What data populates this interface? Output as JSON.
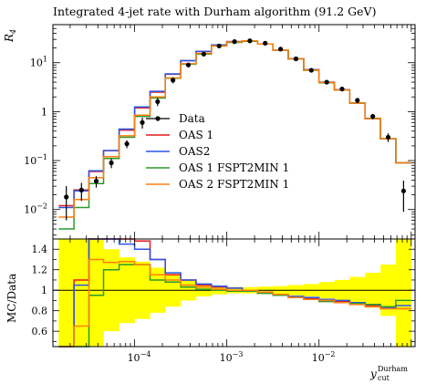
{
  "title": "Integrated 4-jet rate with Durham algorithm (91.2 GeV)",
  "colors": {
    "data": "#000000",
    "oas1": "#e41a1c",
    "oas2": "#2a56e8",
    "oas1fspt": "#2a9a2a",
    "oas2fspt": "#ff7f0e",
    "band": "#ffff00"
  },
  "chart_data": [
    {
      "type": "line",
      "title": "Integrated 4-jet rate with Durham algorithm (91.2 GeV)",
      "ylabel": "R_4",
      "xlabel": "",
      "xscale": "log",
      "yscale": "log",
      "xlim": [
        1.3e-05,
        0.11
      ],
      "ylim": [
        0.0025,
        60
      ],
      "grid": false,
      "legend_position": "center-left",
      "x_ticks": [
        "10^-4",
        "10^-3",
        "10^-2"
      ],
      "y_ticks": [
        "10^-2",
        "10^-1",
        "1",
        "10^1"
      ],
      "bin_edges": [
        1.5e-05,
        2.2e-05,
        3.2e-05,
        4.6e-05,
        6.8e-05,
        0.0001,
        0.000147,
        0.000215,
        0.000316,
        0.000464,
        0.000681,
        0.001,
        0.00147,
        0.00215,
        0.00316,
        0.00464,
        0.00681,
        0.01,
        0.0147,
        0.0215,
        0.0316,
        0.0464,
        0.0681,
        0.1
      ],
      "data": {
        "name": "Data",
        "y": [
          0.018,
          0.025,
          0.038,
          0.09,
          0.22,
          0.6,
          1.6,
          4.4,
          9,
          15,
          22,
          27,
          28,
          25,
          19,
          12,
          7,
          4,
          2.9,
          1.7,
          0.8,
          0.3,
          0.024
        ],
        "err": [
          0.012,
          0.01,
          0.01,
          0.02,
          0.04,
          0.15,
          0.3,
          0.6,
          1,
          1.5,
          2,
          2,
          2,
          2,
          1.5,
          1,
          0.6,
          0.4,
          0.3,
          0.2,
          0.1,
          0.06,
          0.015
        ]
      },
      "series": [
        {
          "name": "OAS 1",
          "color": "#e41a1c",
          "values": [
            0.012,
            0.025,
            0.06,
            0.16,
            0.42,
            1.2,
            2.5,
            5.8,
            11,
            17,
            23,
            27,
            28,
            24,
            18,
            12,
            7.2,
            4.0,
            2.8,
            1.5,
            0.72,
            0.28,
            0.09
          ]
        },
        {
          "name": "OAS2",
          "color": "#2a56e8",
          "values": [
            0.011,
            0.024,
            0.062,
            0.16,
            0.44,
            1.25,
            2.6,
            5.9,
            11,
            17,
            23,
            27,
            28,
            24,
            18,
            12,
            7.2,
            4.0,
            2.8,
            1.5,
            0.72,
            0.28,
            0.09
          ]
        },
        {
          "name": "OAS 1 FSPT2MIN 1",
          "color": "#2a9a2a",
          "values": [
            0.004,
            0.011,
            0.034,
            0.11,
            0.3,
            0.8,
            1.9,
            4.8,
            9.3,
            15,
            22,
            26,
            27.5,
            24,
            18,
            12,
            7,
            3.9,
            2.75,
            1.5,
            0.73,
            0.28,
            0.09
          ]
        },
        {
          "name": "OAS 2 FSPT2MIN 1",
          "color": "#ff7f0e",
          "values": [
            0.007,
            0.016,
            0.045,
            0.12,
            0.32,
            0.85,
            2.0,
            4.9,
            9.5,
            15.5,
            22,
            26.5,
            28,
            24,
            18,
            12,
            7.1,
            3.95,
            2.78,
            1.5,
            0.72,
            0.28,
            0.09
          ]
        }
      ]
    },
    {
      "type": "line",
      "ylabel": "MC/Data",
      "xlabel": "y_cut^Durham",
      "xscale": "log",
      "xlim": [
        1.3e-05,
        0.11
      ],
      "ylim": [
        0.45,
        1.5
      ],
      "y_ticks": [
        "0.6",
        "0.8",
        "1",
        "1.2",
        "1.4"
      ],
      "x_ticks": [
        "10^-4",
        "10^-3",
        "10^-2"
      ],
      "reference_line": 1.0,
      "uncertainty_band": {
        "lower": [
          0.4,
          0.4,
          0.45,
          0.6,
          0.68,
          0.72,
          0.78,
          0.84,
          0.9,
          0.94,
          0.96,
          0.97,
          0.97,
          0.965,
          0.96,
          0.95,
          0.94,
          0.92,
          0.9,
          0.87,
          0.83,
          0.75,
          0.45
        ],
        "upper": [
          1.6,
          1.6,
          1.55,
          1.4,
          1.32,
          1.28,
          1.22,
          1.16,
          1.1,
          1.06,
          1.04,
          1.03,
          1.03,
          1.035,
          1.04,
          1.05,
          1.06,
          1.08,
          1.1,
          1.13,
          1.17,
          1.25,
          1.55
        ]
      },
      "series": [
        {
          "name": "OAS 1",
          "values": [
            0.45,
            1.1,
            1.6,
            1.55,
            1.5,
            1.48,
            1.3,
            1.15,
            1.1,
            1.05,
            1.03,
            1.02,
            1.0,
            0.98,
            0.96,
            0.93,
            0.92,
            0.9,
            0.89,
            0.87,
            0.85,
            0.82,
            0.82
          ]
        },
        {
          "name": "OAS2",
          "values": [
            0.45,
            1.05,
            1.6,
            1.5,
            1.45,
            1.4,
            1.3,
            1.17,
            1.1,
            1.06,
            1.04,
            1.02,
            1.0,
            0.98,
            0.96,
            0.94,
            0.93,
            0.91,
            0.9,
            0.88,
            0.86,
            0.83,
            0.85
          ]
        },
        {
          "name": "OAS 1 FSPT2MIN 1",
          "values": [
            0.22,
            0.45,
            0.95,
            1.2,
            1.25,
            1.25,
            1.1,
            1.08,
            1.03,
            1.01,
            1.0,
            0.99,
            0.99,
            0.97,
            0.95,
            0.93,
            0.91,
            0.89,
            0.88,
            0.87,
            0.86,
            0.84,
            0.9
          ]
        },
        {
          "name": "OAS 2 FSPT2MIN 1",
          "values": [
            0.4,
            0.65,
            1.3,
            1.27,
            1.28,
            1.25,
            1.15,
            1.1,
            1.05,
            1.03,
            1.01,
            1.0,
            1.0,
            0.98,
            0.96,
            0.93,
            0.91,
            0.9,
            0.88,
            0.86,
            0.84,
            0.82,
            0.82
          ]
        }
      ]
    }
  ]
}
